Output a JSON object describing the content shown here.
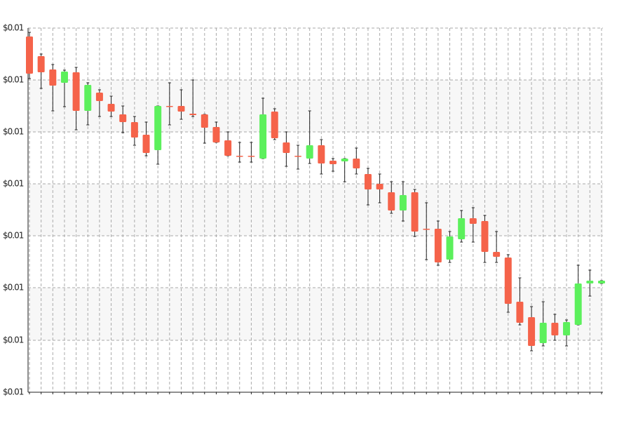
{
  "chart_data": {
    "type": "candlestick",
    "categories": [
      null,
      null,
      null,
      null,
      null,
      null,
      null,
      null,
      null,
      null,
      null,
      null,
      null,
      null,
      null,
      null,
      null,
      null,
      null,
      null,
      null,
      null,
      null,
      null,
      null,
      null,
      null,
      null,
      null,
      null,
      null,
      null,
      null,
      null,
      null,
      null,
      null,
      null,
      null,
      null,
      null,
      null,
      null,
      null,
      null,
      null,
      null,
      null,
      null,
      null
    ],
    "open": [
      0.009988,
      0.00996,
      0.009941,
      0.009922,
      0.009937,
      0.009882,
      0.009908,
      0.009892,
      0.009877,
      0.009866,
      0.009848,
      0.009826,
      0.009889,
      0.009889,
      0.009878,
      0.009877,
      0.009859,
      0.00984,
      0.009818,
      0.009818,
      0.009814,
      0.009881,
      0.009837,
      0.009818,
      0.009814,
      0.009833,
      0.009811,
      0.00981,
      0.009814,
      0.009792,
      0.009778,
      0.009766,
      0.00974,
      0.009766,
      0.009714,
      0.009714,
      0.00967,
      0.009699,
      0.009729,
      0.009725,
      0.009681,
      0.009673,
      0.00961,
      0.009588,
      0.009551,
      0.00958,
      0.009562,
      0.009577,
      0.009636,
      0.009636
    ],
    "high": [
      0.009994,
      0.009963,
      0.009948,
      0.00994,
      0.009944,
      0.009922,
      0.009912,
      0.009903,
      0.009889,
      0.009874,
      0.009866,
      0.009889,
      0.009922,
      0.009912,
      0.009926,
      0.009877,
      0.009866,
      0.009852,
      0.009837,
      0.009837,
      0.0099,
      0.009885,
      0.009852,
      0.009833,
      0.009882,
      0.009841,
      0.009814,
      0.009814,
      0.009829,
      0.0098,
      0.009792,
      0.009781,
      0.009781,
      0.00977,
      0.009751,
      0.009725,
      0.00971,
      0.00974,
      0.009744,
      0.009733,
      0.00971,
      0.009677,
      0.009644,
      0.009603,
      0.00961,
      0.009592,
      0.009584,
      0.009662,
      0.009655,
      0.00964
    ],
    "low": [
      0.009928,
      0.009914,
      0.009882,
      0.009888,
      0.009855,
      0.009862,
      0.009874,
      0.009874,
      0.009851,
      0.009833,
      0.009818,
      0.009806,
      0.009862,
      0.00987,
      0.009874,
      0.009836,
      0.009837,
      0.009818,
      0.009809,
      0.009809,
      0.009814,
      0.009841,
      0.009803,
      0.009799,
      0.009807,
      0.009792,
      0.009796,
      0.009781,
      0.009792,
      0.009748,
      0.009751,
      0.009736,
      0.009725,
      0.009703,
      0.00967,
      0.009662,
      0.009666,
      0.009695,
      0.009695,
      0.009666,
      0.009666,
      0.009595,
      0.009577,
      0.00954,
      0.009547,
      0.009555,
      0.009547,
      0.009577,
      0.009618,
      0.009636
    ],
    "close": [
      0.009935,
      0.009937,
      0.009918,
      0.009938,
      0.009882,
      0.009919,
      0.009896,
      0.009881,
      0.009866,
      0.009844,
      0.009822,
      0.009889,
      0.009888,
      0.009881,
      0.009876,
      0.009858,
      0.009837,
      0.009818,
      0.009817,
      0.009817,
      0.009877,
      0.009843,
      0.009822,
      0.009817,
      0.009833,
      0.009807,
      0.009806,
      0.009814,
      0.0098,
      0.00977,
      0.00977,
      0.00974,
      0.009762,
      0.00971,
      0.009713,
      0.009666,
      0.009703,
      0.009729,
      0.009721,
      0.009681,
      0.009674,
      0.009607,
      0.00958,
      0.009547,
      0.00958,
      0.009562,
      0.009581,
      0.009636,
      0.00964,
      0.00964
    ],
    "up_color": "#5cf05c",
    "down_color": "#f5634a",
    "ylim": [
      0.009481,
      0.01
    ],
    "yticks": [
      {
        "value": 0.009481,
        "label": "$0.01"
      },
      {
        "value": 0.009555,
        "label": "$0.01"
      },
      {
        "value": 0.00963,
        "label": "$0.01"
      },
      {
        "value": 0.009704,
        "label": "$0.01"
      },
      {
        "value": 0.009778,
        "label": "$0.01"
      },
      {
        "value": 0.009852,
        "label": "$0.01"
      },
      {
        "value": 0.009926,
        "label": "$0.01"
      },
      {
        "value": 0.01,
        "label": "$0.01"
      }
    ],
    "grid": true
  }
}
